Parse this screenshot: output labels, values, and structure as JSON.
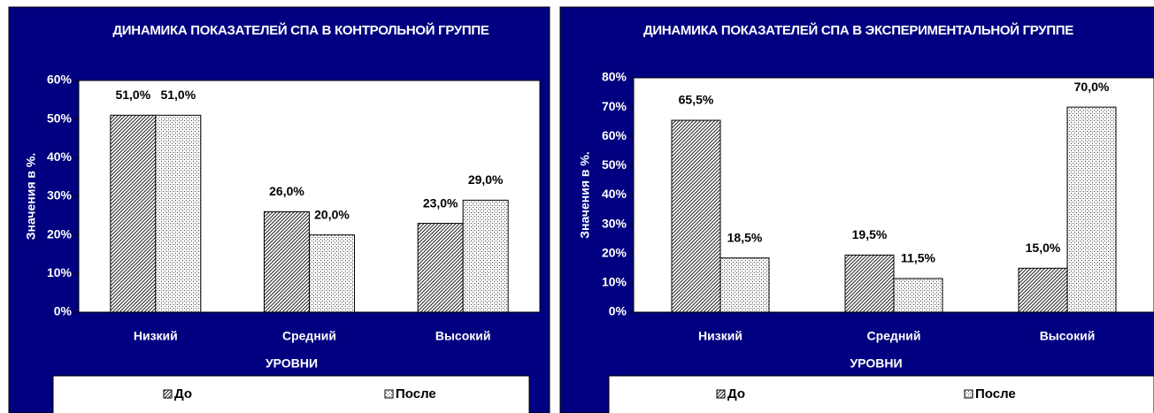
{
  "chart_data": [
    {
      "type": "bar",
      "title": "ДИНАМИКА ПОКАЗАТЕЛЕЙ СПА В КОНТРОЛЬНОЙ ГРУППЕ",
      "xlabel": "УРОВНИ",
      "ylabel": "Значения в %.",
      "categories": [
        "Низкий",
        "Средний",
        "Высокий"
      ],
      "series": [
        {
          "name": "До",
          "values": [
            51,
            26,
            23
          ],
          "value_labels": [
            "51,0%",
            "26,0%",
            "23,0%"
          ]
        },
        {
          "name": "После",
          "values": [
            51,
            20,
            29
          ],
          "value_labels": [
            "51,0%",
            "20,0%",
            "29,0%"
          ]
        }
      ],
      "ylim": [
        0,
        60
      ],
      "yticks": [
        {
          "value": 0,
          "label": "0%"
        },
        {
          "value": 10,
          "label": "10%"
        },
        {
          "value": 20,
          "label": "20%"
        },
        {
          "value": 30,
          "label": "30%"
        },
        {
          "value": 40,
          "label": "40%"
        },
        {
          "value": 50,
          "label": "50%"
        },
        {
          "value": 60,
          "label": "60%"
        }
      ]
    },
    {
      "type": "bar",
      "title": "ДИНАМИКА ПОКАЗАТЕЛЕЙ СПА В ЭКСПЕРИМЕНТАЛЬНОЙ ГРУППЕ",
      "xlabel": "УРОВНИ",
      "ylabel": "Значения в %.",
      "categories": [
        "Низкий",
        "Средний",
        "Высокий"
      ],
      "series": [
        {
          "name": "До",
          "values": [
            65.5,
            19.5,
            15
          ],
          "value_labels": [
            "65,5%",
            "19,5%",
            "15,0%"
          ]
        },
        {
          "name": "После",
          "values": [
            18.5,
            11.5,
            70
          ],
          "value_labels": [
            "18,5%",
            "11,5%",
            "70,0%"
          ]
        }
      ],
      "ylim": [
        0,
        80
      ],
      "yticks": [
        {
          "value": 0,
          "label": "0%"
        },
        {
          "value": 10,
          "label": "10%"
        },
        {
          "value": 20,
          "label": "20%"
        },
        {
          "value": 30,
          "label": "30%"
        },
        {
          "value": 40,
          "label": "40%"
        },
        {
          "value": 50,
          "label": "50%"
        },
        {
          "value": 60,
          "label": "60%"
        },
        {
          "value": 70,
          "label": "70%"
        },
        {
          "value": 80,
          "label": "80%"
        }
      ]
    }
  ]
}
